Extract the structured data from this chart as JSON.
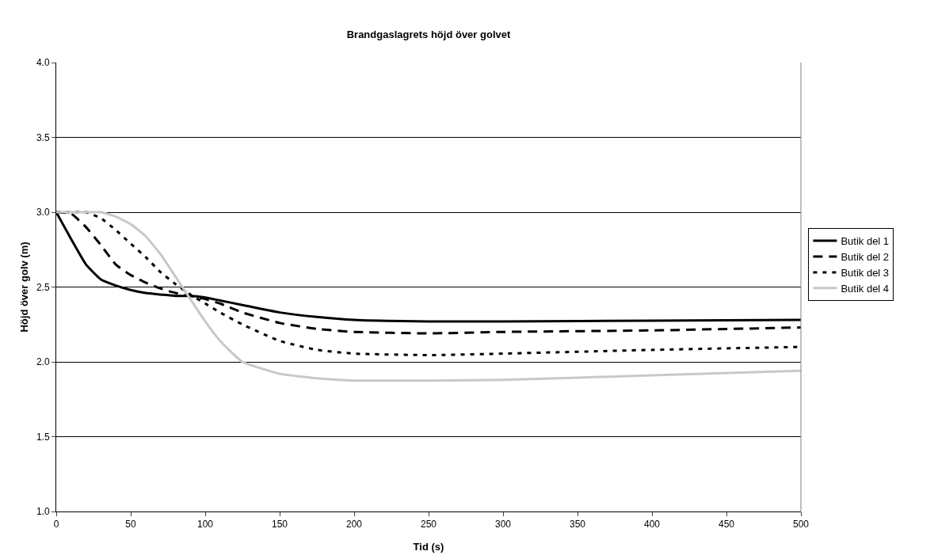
{
  "chart_data": {
    "type": "line",
    "title": "Brandgaslagrets höjd över golvet",
    "xlabel": "Tid (s)",
    "ylabel": "Höjd över golv (m)",
    "x": [
      0,
      10,
      20,
      30,
      40,
      50,
      60,
      70,
      80,
      90,
      100,
      110,
      125,
      150,
      175,
      200,
      250,
      300,
      400,
      500
    ],
    "series": [
      {
        "name": "Butik del 1",
        "color": "#000000",
        "line_style": "solid",
        "values": [
          3.0,
          2.82,
          2.65,
          2.55,
          2.51,
          2.48,
          2.46,
          2.45,
          2.44,
          2.44,
          2.43,
          2.41,
          2.38,
          2.33,
          2.3,
          2.28,
          2.27,
          2.27,
          2.275,
          2.28
        ]
      },
      {
        "name": "Butik del 2",
        "color": "#000000",
        "line_style": "dashed",
        "values": [
          3.0,
          2.99,
          2.9,
          2.78,
          2.65,
          2.58,
          2.53,
          2.49,
          2.46,
          2.44,
          2.42,
          2.39,
          2.33,
          2.26,
          2.22,
          2.2,
          2.19,
          2.2,
          2.21,
          2.23
        ]
      },
      {
        "name": "Butik del 3",
        "color": "#000000",
        "line_style": "dotted",
        "values": [
          3.0,
          3.0,
          3.0,
          2.96,
          2.88,
          2.79,
          2.7,
          2.6,
          2.52,
          2.45,
          2.39,
          2.33,
          2.25,
          2.14,
          2.08,
          2.055,
          2.045,
          2.055,
          2.08,
          2.1
        ]
      },
      {
        "name": "Butik del 4",
        "color": "#c8c8c8",
        "line_style": "solid",
        "values": [
          3.0,
          3.0,
          3.0,
          3.0,
          2.97,
          2.92,
          2.84,
          2.72,
          2.57,
          2.42,
          2.27,
          2.14,
          2.0,
          1.92,
          1.89,
          1.875,
          1.875,
          1.88,
          1.91,
          1.94
        ]
      }
    ],
    "xlim": [
      0,
      500
    ],
    "xticks": [
      0,
      50,
      100,
      150,
      200,
      250,
      300,
      350,
      400,
      450,
      500
    ],
    "ylim": [
      1.0,
      4.0
    ],
    "yticks": [
      {
        "value": 1.0,
        "label": "1.0"
      },
      {
        "value": 1.5,
        "label": "1.5"
      },
      {
        "value": 2.0,
        "label": "2.0"
      },
      {
        "value": 2.5,
        "label": "2.5"
      },
      {
        "value": 3.0,
        "label": "3.0"
      },
      {
        "value": 3.5,
        "label": "3.5"
      },
      {
        "value": 4.0,
        "label": "4.0"
      }
    ],
    "grid": "y",
    "legend": "right"
  }
}
